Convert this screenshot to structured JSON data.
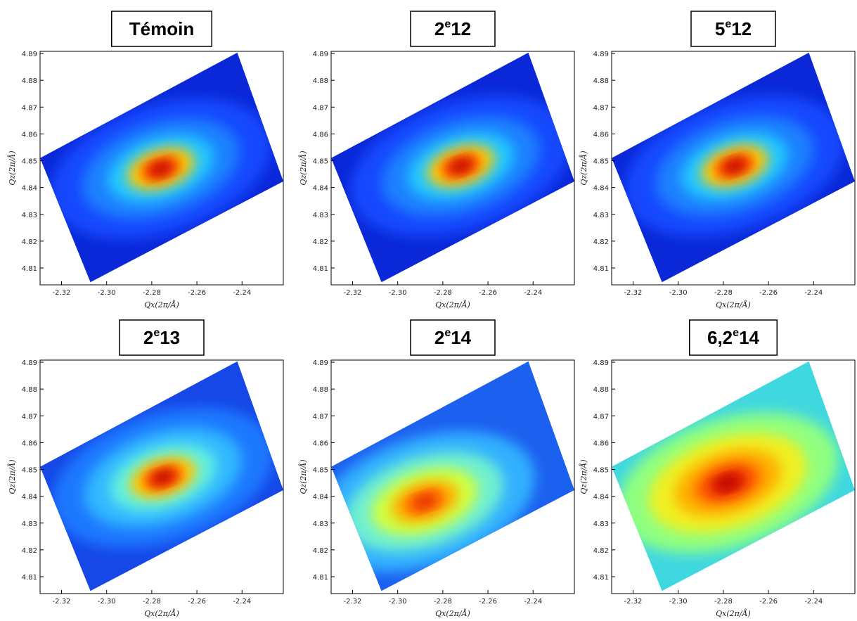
{
  "chart_data": [
    {
      "type": "heatmap",
      "title": [
        "Témoin"
      ],
      "x_label": "Qx(2π/Å)",
      "y_label": "Qz(2π/Å)",
      "xlim": [
        -2.3295,
        -2.2217
      ],
      "ylim": [
        4.8037,
        4.8908
      ],
      "xticks": [
        -2.32,
        {
          "value": -2.3,
          "label": "-2.30"
        },
        -2.28,
        -2.26,
        -2.24
      ],
      "yticks": [
        4.81,
        4.82,
        4.83,
        4.84,
        4.85,
        4.86,
        4.87,
        4.88,
        4.89
      ],
      "region": {
        "x": [
          -2.3295,
          -2.2421,
          -2.2217,
          -2.3072
        ],
        "y": [
          4.851,
          4.8903,
          4.8423,
          4.8047
        ]
      },
      "background": "#0a28d8",
      "peak": {
        "x": -2.276,
        "y": 4.847
      },
      "colors": [
        "#1448ff",
        "#1a80ff",
        "#20c8ff",
        "#ffd000",
        "#ff3000",
        "#b00000"
      ]
    },
    {
      "type": "heatmap",
      "title": [
        "2",
        "e",
        "12"
      ],
      "x_label": "Qx(2π/Å)",
      "y_label": "Qz(2π/Å)",
      "xlim": [
        -2.3295,
        -2.2217
      ],
      "ylim": [
        4.8037,
        4.8908
      ],
      "xticks": [
        -2.32,
        {
          "value": -2.3,
          "label": "-2.30"
        },
        -2.28,
        -2.26,
        -2.24
      ],
      "yticks": [
        4.81,
        4.82,
        4.83,
        4.84,
        4.85,
        4.86,
        4.87,
        4.88,
        4.89
      ],
      "region": {
        "x": [
          -2.3295,
          -2.2421,
          -2.2217,
          -2.3072
        ],
        "y": [
          4.851,
          4.8903,
          4.8423,
          4.8047
        ]
      },
      "background": "#0a28d8",
      "peak": {
        "x": -2.272,
        "y": 4.848
      },
      "colors": [
        "#1448ff",
        "#1a80ff",
        "#20c8ff",
        "#ffd000",
        "#ff3000",
        "#b00000"
      ]
    },
    {
      "type": "heatmap",
      "title": [
        "5",
        "e",
        "12"
      ],
      "x_label": "Qx(2π/Å)",
      "y_label": "Qz(2π/Å)",
      "xlim": [
        -2.3295,
        -2.2217
      ],
      "ylim": [
        4.8037,
        4.8908
      ],
      "xticks": [
        -2.32,
        {
          "value": -2.3,
          "label": "-2.30"
        },
        -2.28,
        -2.26,
        -2.24
      ],
      "yticks": [
        4.81,
        4.82,
        4.83,
        4.84,
        4.85,
        4.86,
        4.87,
        4.88,
        4.89
      ],
      "region": {
        "x": [
          -2.3295,
          -2.2421,
          -2.2217,
          -2.3072
        ],
        "y": [
          4.851,
          4.8903,
          4.8423,
          4.8047
        ]
      },
      "background": "#0a28d8",
      "peak": {
        "x": -2.275,
        "y": 4.848
      },
      "colors": [
        "#1448ff",
        "#1a80ff",
        "#20c8ff",
        "#ffd000",
        "#ff3000",
        "#b00000"
      ]
    },
    {
      "type": "heatmap",
      "title": [
        "2",
        "e",
        "13"
      ],
      "x_label": "Qx(2π/Å)",
      "y_label": "Qz(2π/Å)",
      "xlim": [
        -2.3295,
        -2.2217
      ],
      "ylim": [
        4.8037,
        4.8908
      ],
      "xticks": [
        -2.32,
        {
          "value": -2.3,
          "label": "-2.30"
        },
        -2.28,
        -2.26,
        -2.24
      ],
      "yticks": [
        4.81,
        4.82,
        4.83,
        4.84,
        4.85,
        4.86,
        4.87,
        4.88,
        4.89
      ],
      "region": {
        "x": [
          -2.3295,
          -2.2421,
          -2.2217,
          -2.3072
        ],
        "y": [
          4.851,
          4.8903,
          4.8423,
          4.8047
        ]
      },
      "background": "#1648e8",
      "peak": {
        "x": -2.275,
        "y": 4.847
      },
      "colors": [
        "#1a78ff",
        "#30b8ff",
        "#60f0e0",
        "#ffd000",
        "#ff3000",
        "#b00000"
      ]
    },
    {
      "type": "heatmap",
      "title": [
        "2",
        "e",
        "14"
      ],
      "x_label": "Qx(2π/Å)",
      "y_label": "Qz(2π/Å)",
      "xlim": [
        -2.3295,
        -2.2217
      ],
      "ylim": [
        4.8037,
        4.8908
      ],
      "xticks": [
        -2.32,
        {
          "value": -2.3,
          "label": "-2.30"
        },
        -2.28,
        -2.26,
        -2.24
      ],
      "yticks": [
        4.81,
        4.82,
        4.83,
        4.84,
        4.85,
        4.86,
        4.87,
        4.88,
        4.89
      ],
      "region": {
        "x": [
          -2.3295,
          -2.2421,
          -2.2217,
          -2.3072
        ],
        "y": [
          4.851,
          4.8903,
          4.8423,
          4.8047
        ]
      },
      "background": "#1c60f0",
      "peak": {
        "x": -2.288,
        "y": 4.838
      },
      "colors": [
        "#30b0ff",
        "#70f0d0",
        "#d0ff40",
        "#ffb000",
        "#ff6000",
        "#e02000"
      ]
    },
    {
      "type": "heatmap",
      "title": [
        "6,2",
        "e",
        "14"
      ],
      "x_label": "Qx(2π/Å)",
      "y_label": "Qz(2π/Å)",
      "xlim": [
        -2.3295,
        -2.2217
      ],
      "ylim": [
        4.8037,
        4.8908
      ],
      "xticks": [
        -2.32,
        {
          "value": -2.3,
          "label": "-2.30"
        },
        -2.28,
        -2.26,
        -2.24
      ],
      "yticks": [
        4.81,
        4.82,
        4.83,
        4.84,
        4.85,
        4.86,
        4.87,
        4.88,
        4.89
      ],
      "region": {
        "x": [
          -2.3295,
          -2.2421,
          -2.2217,
          -2.3072
        ],
        "y": [
          4.851,
          4.8903,
          4.8423,
          4.8047
        ]
      },
      "background": "#40d8e0",
      "peak": {
        "x": -2.278,
        "y": 4.845
      },
      "colors": [
        "#90ff80",
        "#f0f020",
        "#ffb000",
        "#ff6000",
        "#e01800",
        "#b00000"
      ]
    }
  ]
}
